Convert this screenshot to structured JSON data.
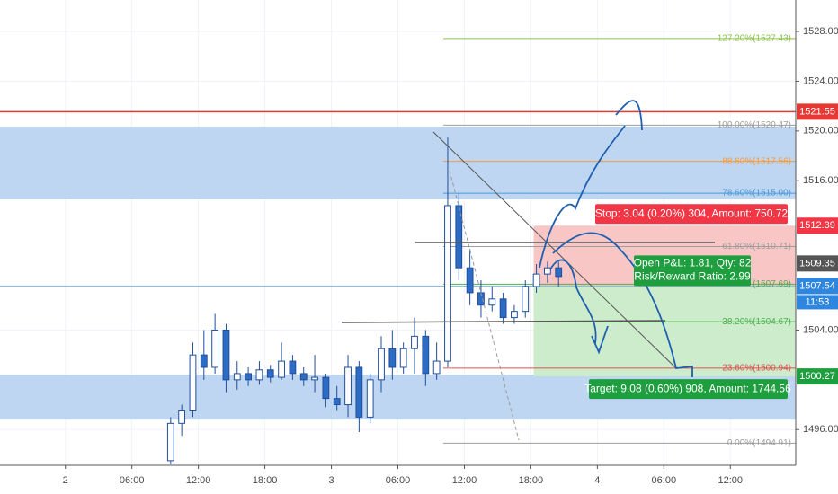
{
  "chart_data": {
    "type": "candlestick",
    "xlim": [
      -5.9,
      65.9
    ],
    "ylim": [
      1493.13,
      1530.53
    ],
    "grid": true,
    "xticks": [
      {
        "value": 0,
        "label": "2"
      },
      {
        "value": 6,
        "label": "06:00"
      },
      {
        "value": 12,
        "label": "12:00"
      },
      {
        "value": 18,
        "label": "18:00"
      },
      {
        "value": 24,
        "label": "3"
      },
      {
        "value": 30,
        "label": "06:00"
      },
      {
        "value": 36,
        "label": "12:00"
      },
      {
        "value": 42,
        "label": "18:00"
      },
      {
        "value": 48,
        "label": "4"
      },
      {
        "value": 54,
        "label": "06:00"
      },
      {
        "value": 60,
        "label": "12:00"
      }
    ],
    "yticks": [
      {
        "value": 1496,
        "label": "1496.00"
      },
      {
        "value": 1504,
        "label": "1504.00"
      },
      {
        "value": 1516,
        "label": "1516.00"
      },
      {
        "value": 1520,
        "label": "1520.00"
      },
      {
        "value": 1524,
        "label": "1524.00"
      },
      {
        "value": 1528,
        "label": "1528.00"
      }
    ],
    "up_color": "#ffffff",
    "down_color": "#2c6cc4",
    "outline_color": "#1f4e9c",
    "x": [
      9.5,
      10.5,
      11.5,
      12.5,
      13.5,
      14.5,
      15.5,
      16.5,
      17.5,
      18.5,
      19.5,
      20.5,
      21.5,
      22.5,
      23.5,
      24.5,
      25.5,
      26.5,
      27.5,
      28.5,
      29.5,
      30.5,
      31.5,
      32.5,
      33.5,
      34.5,
      35.5,
      36.5,
      37.5,
      38.5,
      39.5,
      40.5,
      41.5,
      42.5,
      43.5,
      44.5
    ],
    "open": [
      1493.5,
      1496.5,
      1497.5,
      1502,
      1501,
      1504,
      1500,
      1500.5,
      1500,
      1500.8,
      1500.2,
      1501.5,
      1500.5,
      1500,
      1500.2,
      1498.5,
      1498,
      1501,
      1497,
      1500,
      1502.5,
      1501,
      1502.5,
      1503.5,
      1500.5,
      1501.5,
      1514,
      1509,
      1507,
      1506,
      1506.5,
      1505,
      1505.5,
      1507.5,
      1508.5,
      1509
    ],
    "high": [
      1497,
      1498,
      1503,
      1504,
      1505.3,
      1504.5,
      1501.5,
      1501,
      1501.5,
      1501.2,
      1503,
      1502,
      1501,
      1502,
      1500.5,
      1499.5,
      1502,
      1501.5,
      1500.5,
      1503.5,
      1504,
      1503,
      1505,
      1504,
      1503,
      1519.5,
      1515,
      1510.5,
      1508,
      1507.5,
      1507,
      1506,
      1508,
      1509.3,
      1509.5,
      1509.5
    ],
    "low": [
      1493.2,
      1495.5,
      1497,
      1500,
      1500.5,
      1499,
      1499.2,
      1499.5,
      1499.6,
      1499.8,
      1500,
      1500,
      1499.5,
      1499,
      1497.8,
      1497.5,
      1497,
      1495.8,
      1496.5,
      1499,
      1500,
      1500.5,
      1500.5,
      1499.5,
      1500,
      1501,
      1508,
      1506,
      1505,
      1505.5,
      1504.5,
      1504.5,
      1505,
      1507,
      1507.8,
      1507.5
    ],
    "close": [
      1496.5,
      1497.5,
      1502,
      1501,
      1504,
      1500,
      1500.5,
      1500,
      1500.8,
      1500.2,
      1501.5,
      1500.5,
      1500,
      1500.2,
      1498.5,
      1498,
      1501,
      1497,
      1500,
      1502.5,
      1501,
      1502.5,
      1503.5,
      1500.5,
      1501.5,
      1514,
      1509,
      1507,
      1506,
      1506.5,
      1505,
      1505.5,
      1507.5,
      1508.5,
      1509,
      1508.3
    ],
    "zones": {
      "color": "#b3cfee",
      "bands": [
        [
          1514.5,
          1520.35
        ],
        [
          1496.8,
          1500.42
        ]
      ]
    },
    "fib": {
      "start": 34.1,
      "levels": [
        {
          "value": 1527.43,
          "label": "127.20%(1527.43)",
          "color": "#8bc34a"
        },
        {
          "value": 1520.47,
          "label": "100.00%(1520.47)",
          "color": "#9e9e9e"
        },
        {
          "value": 1517.56,
          "label": "88.60%(1517.56)",
          "color": "#f59a3c"
        },
        {
          "value": 1515.0,
          "label": "78.60%(1515.00)",
          "color": "#4a9ad8"
        },
        {
          "value": 1510.71,
          "label": "61.80%(1510.71)",
          "color": "#9e9e9e"
        },
        {
          "value": 1507.69,
          "label": "(1507.69)",
          "color": "#4caf50"
        },
        {
          "value": 1504.67,
          "label": "38.20%(1504.67)",
          "color": "#4caf50"
        },
        {
          "value": 1500.94,
          "label": "23.60%(1500.94)",
          "color": "#e05050"
        },
        {
          "value": 1494.91,
          "label": "0.00%(1494.91)",
          "color": "#9e9e9e"
        }
      ]
    },
    "price_labels": [
      {
        "value": 1521.55,
        "label": "1521.55",
        "color": "#e53935"
      },
      {
        "value": 1512.39,
        "label": "1512.39",
        "color": "#f23645"
      },
      {
        "value": 1509.35,
        "label": "1509.35",
        "color": "#555555"
      },
      {
        "value": 1507.54,
        "label": "1507.54",
        "color": "#2e86de"
      },
      {
        "value": 1500.27,
        "label": "1500.27",
        "color": "#1e9e3e"
      }
    ],
    "countdown": "11:53",
    "position": {
      "start": 42.25,
      "stop_color": "#f9c6c6",
      "target_color": "#cdeccb",
      "stop_text": "Stop: 3.04 (0.20%) 304, Amount: 750.72",
      "pnl_text": "Open P&L: 1.81, Qty: 82",
      "rr_text": "Risk/Reward Ratio: 2.99",
      "target_text": "Target: 9.08 (0.60%) 908, Amount: 1744.56"
    }
  }
}
